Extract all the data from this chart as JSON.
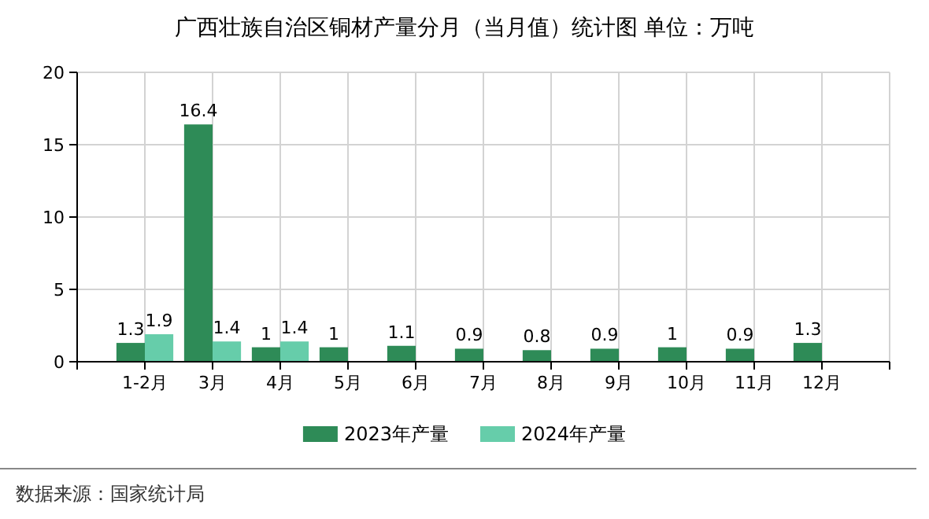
{
  "chart_data": {
    "type": "bar",
    "title": "广西壮族自治区铜材产量分月（当月值）统计图 单位：万吨",
    "categories": [
      "1-2月",
      "3月",
      "4月",
      "5月",
      "6月",
      "7月",
      "8月",
      "9月",
      "10月",
      "11月",
      "12月"
    ],
    "series": [
      {
        "name": "2023年产量",
        "color": "#2e8b57",
        "values": [
          1.3,
          16.4,
          1,
          1,
          1.1,
          0.9,
          0.8,
          0.9,
          1,
          0.9,
          1.3
        ]
      },
      {
        "name": "2024年产量",
        "color": "#66cdaa",
        "values": [
          1.9,
          1.4,
          1.4,
          null,
          null,
          null,
          null,
          null,
          null,
          null,
          null
        ]
      }
    ],
    "ylim": [
      0,
      20
    ],
    "yticks": [
      0,
      5,
      10,
      15,
      20
    ],
    "grid": true,
    "legend": "bottom",
    "data_labels": true,
    "annotations": [
      "数据来源：国家统计局"
    ]
  }
}
